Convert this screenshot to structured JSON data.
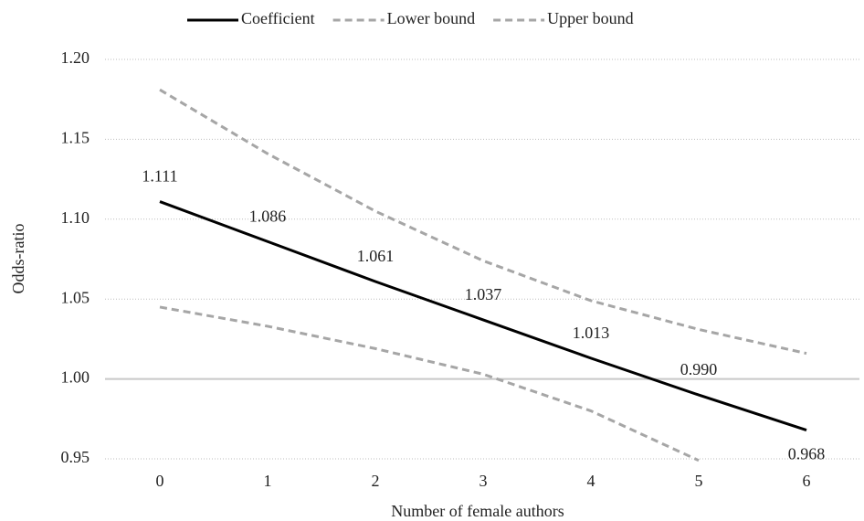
{
  "chart_data": {
    "type": "line",
    "categories": [
      "0",
      "1",
      "2",
      "3",
      "4",
      "5",
      "6"
    ],
    "x_label": "Number of female authors",
    "y_label": "Odds-ratio",
    "ylim": [
      0.95,
      1.2
    ],
    "yticks": [
      0.95,
      {
        "value": 1.0,
        "label": "1.00"
      },
      1.05,
      {
        "value": 1.1,
        "label": "1.10"
      },
      1.15,
      {
        "value": 1.2,
        "label": "1.20"
      }
    ],
    "grid": true,
    "legend": "top",
    "series": [
      {
        "name": "Coefficient",
        "color": "#000000",
        "dash": false,
        "values": [
          1.111,
          1.086,
          1.061,
          1.037,
          1.013,
          0.99,
          0.968
        ],
        "value_labels": [
          "1.111",
          "1.086",
          "1.061",
          "1.037",
          "1.013",
          "0.990",
          "0.968"
        ]
      },
      {
        "name": "Lower bound",
        "color": "#a6a6a6",
        "dash": true,
        "values": [
          1.045,
          1.033,
          1.019,
          1.003,
          0.98,
          0.949,
          null
        ]
      },
      {
        "name": "Upper bound",
        "color": "#a6a6a6",
        "dash": true,
        "values": [
          1.181,
          1.141,
          1.105,
          1.074,
          1.049,
          1.031,
          1.016
        ]
      }
    ]
  }
}
